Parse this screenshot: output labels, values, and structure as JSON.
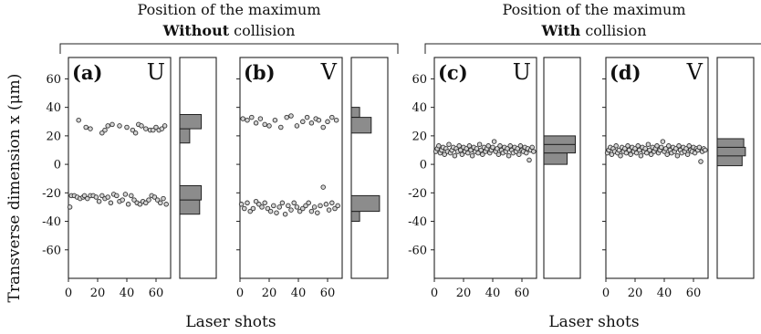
{
  "groups": [
    {
      "title_line1": "Position of the maximum",
      "title_bold": "Without",
      "title_rest": " collision"
    },
    {
      "title_line1": "Position of the maximum",
      "title_bold": "With",
      "title_rest": " collision"
    }
  ],
  "ylabel": "Transverse dimension x (μm)",
  "xlabel": "Laser shots",
  "chart_data": [
    {
      "type": "scatter",
      "panel": "(a)",
      "component": "U",
      "xlim": [
        0,
        70
      ],
      "ylim": [
        -80,
        75
      ],
      "xticks": [
        0,
        20,
        40,
        60
      ],
      "yticks": [
        60,
        40,
        20,
        0,
        -20,
        -40,
        -60
      ],
      "x": [
        1,
        2,
        4,
        6,
        8,
        10,
        11,
        13,
        15,
        17,
        19,
        21,
        23,
        25,
        27,
        29,
        31,
        33,
        35,
        37,
        39,
        41,
        43,
        45,
        47,
        49,
        51,
        53,
        55,
        57,
        59,
        61,
        63,
        65,
        67,
        7,
        12,
        15,
        23,
        25,
        27,
        30,
        35,
        40,
        44,
        46,
        48,
        50,
        53,
        56,
        58,
        60,
        62,
        64,
        66
      ],
      "y": [
        -30,
        -22,
        -22,
        -23,
        -24,
        -23,
        -22,
        -24,
        -22,
        -22,
        -23,
        -26,
        -22,
        -24,
        -23,
        -27,
        -21,
        -22,
        -26,
        -25,
        -21,
        -28,
        -22,
        -25,
        -27,
        -28,
        -26,
        -27,
        -25,
        -22,
        -23,
        -25,
        -27,
        -24,
        -28,
        31,
        26,
        25,
        22,
        24,
        27,
        28,
        27,
        26,
        24,
        22,
        28,
        27,
        25,
        24,
        24,
        26,
        24,
        25,
        27
      ],
      "hist": {
        "bins": [
          [
            -35,
            -25
          ],
          [
            -25,
            -15
          ],
          [
            15,
            25
          ],
          [
            25,
            35
          ]
        ],
        "counts": [
          12,
          13,
          6,
          13
        ],
        "max": 22
      }
    },
    {
      "type": "scatter",
      "panel": "(b)",
      "component": "V",
      "xlim": [
        0,
        70
      ],
      "ylim": [
        -80,
        75
      ],
      "xticks": [
        0,
        20,
        40,
        60
      ],
      "yticks": [
        60,
        40,
        20,
        0,
        -20,
        -40,
        -60
      ],
      "x": [
        1,
        3,
        5,
        7,
        9,
        11,
        13,
        15,
        17,
        19,
        21,
        23,
        25,
        27,
        29,
        31,
        33,
        35,
        37,
        39,
        41,
        43,
        45,
        47,
        49,
        51,
        53,
        55,
        57,
        59,
        61,
        63,
        65,
        67,
        2,
        5,
        8,
        11,
        14,
        17,
        20,
        24,
        28,
        32,
        35,
        39,
        43,
        46,
        49,
        52,
        54,
        57,
        60,
        63,
        66
      ],
      "y": [
        -28,
        -31,
        -27,
        -33,
        -31,
        -26,
        -28,
        -30,
        -27,
        -31,
        -33,
        -29,
        -34,
        -30,
        -27,
        -35,
        -29,
        -32,
        -27,
        -30,
        -33,
        -31,
        -29,
        -27,
        -33,
        -30,
        -34,
        -29,
        -16,
        -28,
        -32,
        -27,
        -31,
        -29,
        32,
        31,
        33,
        29,
        32,
        28,
        27,
        31,
        26,
        33,
        34,
        27,
        30,
        33,
        29,
        32,
        31,
        26,
        30,
        33,
        31
      ],
      "hist": {
        "bins": [
          [
            -40,
            -33
          ],
          [
            -33,
            -22
          ],
          [
            22,
            33
          ],
          [
            33,
            40
          ]
        ],
        "counts": [
          5,
          17,
          12,
          5
        ],
        "max": 22
      }
    },
    {
      "type": "scatter",
      "panel": "(c)",
      "component": "U",
      "xlim": [
        0,
        70
      ],
      "ylim": [
        -80,
        75
      ],
      "xticks": [
        0,
        20,
        40,
        60
      ],
      "yticks": [
        60,
        40,
        20,
        0,
        -20,
        -40,
        -60
      ],
      "x": [
        1,
        2,
        3,
        4,
        5,
        6,
        7,
        8,
        9,
        10,
        11,
        12,
        13,
        14,
        15,
        16,
        17,
        18,
        19,
        20,
        21,
        22,
        23,
        24,
        25,
        26,
        27,
        28,
        29,
        30,
        31,
        32,
        33,
        34,
        35,
        36,
        37,
        38,
        39,
        40,
        41,
        42,
        43,
        44,
        45,
        46,
        47,
        48,
        49,
        50,
        51,
        52,
        53,
        54,
        55,
        56,
        57,
        58,
        59,
        60,
        61,
        62,
        63,
        64,
        65,
        66,
        67,
        68
      ],
      "y": [
        9,
        11,
        13,
        8,
        10,
        12,
        7,
        11,
        9,
        14,
        8,
        10,
        12,
        6,
        11,
        9,
        13,
        10,
        7,
        12,
        9,
        11,
        8,
        13,
        10,
        6,
        12,
        9,
        11,
        8,
        14,
        10,
        7,
        12,
        9,
        11,
        13,
        8,
        10,
        12,
        16,
        9,
        11,
        7,
        13,
        10,
        8,
        12,
        9,
        11,
        6,
        13,
        10,
        8,
        12,
        9,
        11,
        7,
        13,
        10,
        9,
        12,
        8,
        11,
        3,
        10,
        12,
        9
      ],
      "hist": {
        "bins": [
          [
            0,
            8
          ],
          [
            8,
            14
          ],
          [
            14,
            20
          ]
        ],
        "counts": [
          14,
          19,
          19
        ],
        "max": 22
      }
    },
    {
      "type": "scatter",
      "panel": "(d)",
      "component": "V",
      "xlim": [
        0,
        70
      ],
      "ylim": [
        -80,
        75
      ],
      "xticks": [
        0,
        20,
        40,
        60
      ],
      "yticks": [
        60,
        40,
        20,
        0,
        -20,
        -40,
        -60
      ],
      "x": [
        1,
        2,
        3,
        4,
        5,
        6,
        7,
        8,
        9,
        10,
        11,
        12,
        13,
        14,
        15,
        16,
        17,
        18,
        19,
        20,
        21,
        22,
        23,
        24,
        25,
        26,
        27,
        28,
        29,
        30,
        31,
        32,
        33,
        34,
        35,
        36,
        37,
        38,
        39,
        40,
        41,
        42,
        43,
        44,
        45,
        46,
        47,
        48,
        49,
        50,
        51,
        52,
        53,
        54,
        55,
        56,
        57,
        58,
        59,
        60,
        61,
        62,
        63,
        64,
        65,
        66,
        67,
        68
      ],
      "y": [
        8,
        10,
        12,
        7,
        11,
        9,
        13,
        8,
        10,
        6,
        12,
        9,
        11,
        8,
        13,
        10,
        7,
        12,
        9,
        11,
        8,
        13,
        10,
        6,
        12,
        9,
        11,
        8,
        14,
        10,
        7,
        12,
        9,
        11,
        13,
        8,
        10,
        12,
        16,
        9,
        11,
        7,
        13,
        10,
        8,
        12,
        9,
        11,
        6,
        13,
        10,
        8,
        12,
        9,
        11,
        7,
        13,
        10,
        9,
        12,
        8,
        11,
        10,
        12,
        2,
        9,
        11,
        10
      ],
      "hist": {
        "bins": [
          [
            -1,
            6
          ],
          [
            6,
            12
          ],
          [
            12,
            18
          ]
        ],
        "counts": [
          15,
          17,
          16
        ],
        "max": 22
      }
    }
  ]
}
